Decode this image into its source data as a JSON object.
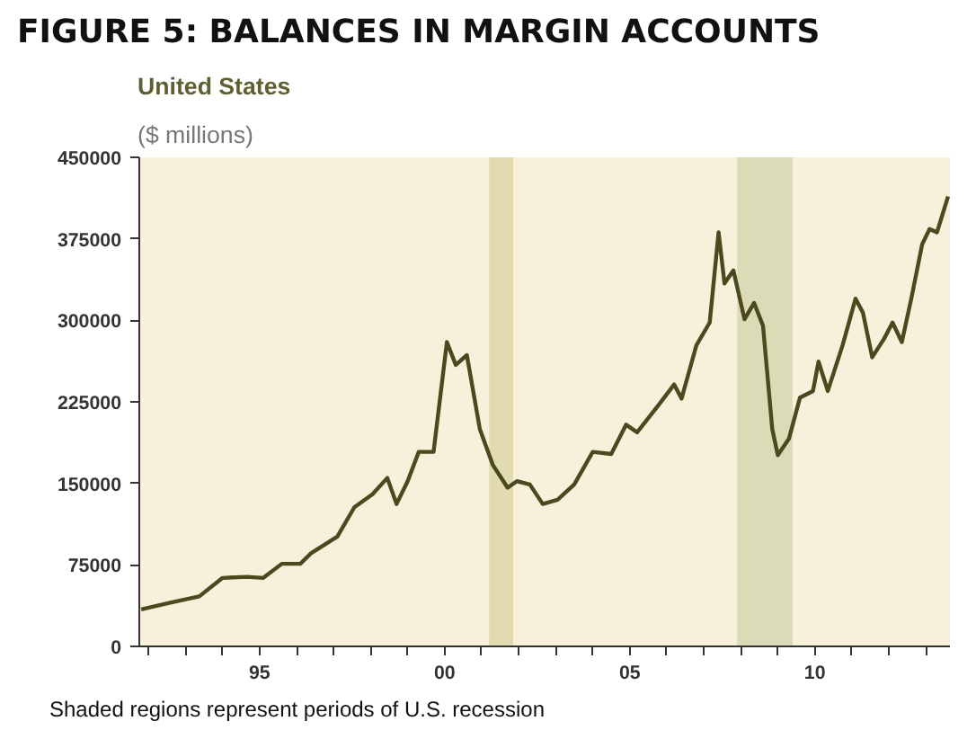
{
  "chart_data": {
    "type": "line",
    "title": "FIGURE 5: BALANCES IN MARGIN ACCOUNTS",
    "subtitle": "United States",
    "ylabel": "($ millions)",
    "annotations": [
      "Shaded regions represent periods of U.S. recession"
    ],
    "x": [
      1991.8,
      1992.56,
      1993.37,
      1994.0,
      1994.66,
      1995.1,
      1995.6,
      1996.1,
      1996.4,
      1997.1,
      1997.56,
      1998.05,
      1998.45,
      1998.7,
      1999.0,
      1999.3,
      1999.7,
      2000.06,
      2000.3,
      2000.6,
      2000.95,
      2001.3,
      2001.7,
      2001.95,
      2002.3,
      2002.65,
      2003.05,
      2003.5,
      2004.0,
      2004.5,
      2004.9,
      2005.2,
      2005.8,
      2006.2,
      2006.4,
      2006.8,
      2007.16,
      2007.4,
      2007.56,
      2007.8,
      2008.1,
      2008.36,
      2008.6,
      2008.85,
      2009.0,
      2009.3,
      2009.6,
      2009.95,
      2010.1,
      2010.35,
      2010.75,
      2011.1,
      2011.3,
      2011.55,
      2011.87,
      2012.1,
      2012.35,
      2012.6,
      2012.9,
      2013.1,
      2013.3,
      2013.6
    ],
    "series": [
      {
        "color": "#4a4a1e",
        "values": [
          34000,
          40000,
          46000,
          63000,
          64000,
          63000,
          76000,
          76000,
          86000,
          101000,
          128000,
          140000,
          155000,
          131000,
          152000,
          179000,
          179000,
          280000,
          259000,
          268000,
          200000,
          167000,
          146000,
          152000,
          149000,
          131000,
          135000,
          149000,
          179000,
          177000,
          204000,
          197000,
          223000,
          241000,
          228000,
          277000,
          298000,
          381000,
          334000,
          346000,
          301000,
          316000,
          295000,
          200000,
          176000,
          191000,
          229000,
          235000,
          262000,
          235000,
          277000,
          320000,
          307000,
          266000,
          283000,
          298000,
          280000,
          319000,
          370000,
          384000,
          381000,
          414000
        ]
      }
    ],
    "xlim": [
      1991.75,
      2013.65
    ],
    "xticks": [
      {
        "value": 1992,
        "label": null
      },
      {
        "value": 1993,
        "label": null
      },
      {
        "value": 1994,
        "label": null
      },
      {
        "value": 1995,
        "label": "95"
      },
      {
        "value": 1996,
        "label": null
      },
      {
        "value": 1997,
        "label": null
      },
      {
        "value": 1998,
        "label": null
      },
      {
        "value": 1999,
        "label": null
      },
      {
        "value": 2000,
        "label": "00"
      },
      {
        "value": 2001,
        "label": null
      },
      {
        "value": 2002,
        "label": null
      },
      {
        "value": 2003,
        "label": null
      },
      {
        "value": 2004,
        "label": null
      },
      {
        "value": 2005,
        "label": "05"
      },
      {
        "value": 2006,
        "label": null
      },
      {
        "value": 2007,
        "label": null
      },
      {
        "value": 2008,
        "label": null
      },
      {
        "value": 2009,
        "label": null
      },
      {
        "value": 2010,
        "label": "10"
      },
      {
        "value": 2011,
        "label": null
      },
      {
        "value": 2012,
        "label": null
      },
      {
        "value": 2013,
        "label": null
      }
    ],
    "ylim": [
      0,
      450000
    ],
    "yticks": [
      0,
      75000,
      150000,
      225000,
      300000,
      375000,
      450000
    ],
    "bands": [
      {
        "axis": "x",
        "from": 2001.2,
        "to": 2001.85,
        "color": "#e2dab0"
      },
      {
        "axis": "x",
        "from": 2007.9,
        "to": 2009.4,
        "color": "#dcdbb8"
      }
    ],
    "grid": false
  }
}
